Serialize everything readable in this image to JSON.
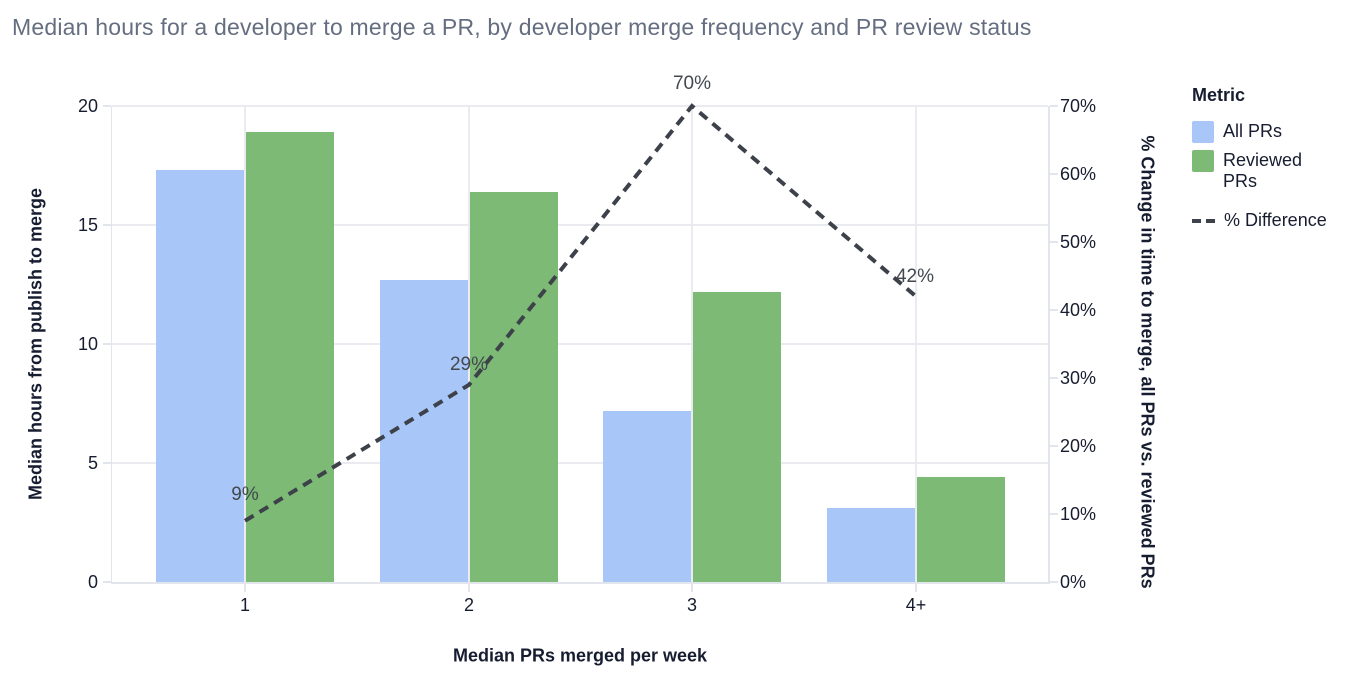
{
  "title": "Median hours for a developer to merge a PR, by developer merge frequency and PR review status",
  "colors": {
    "all_prs": "#a8c6f7",
    "reviewed_prs": "#7cba76",
    "difference_line": "#3d4149",
    "title_text": "#656e80",
    "axis_text": "#171d30",
    "line_label_text": "#43484f",
    "gridline": "#eaebf1",
    "axis_line": "#e3e5ec",
    "background": "#ffffff"
  },
  "chart_data": {
    "type": "bar+line combo",
    "categories": [
      "1",
      "2",
      "3",
      "4+"
    ],
    "series": [
      {
        "name": "All PRs",
        "type": "bar",
        "axis": "left",
        "values": [
          17.3,
          12.7,
          7.2,
          3.1
        ]
      },
      {
        "name": "Reviewed PRs",
        "type": "bar",
        "axis": "left",
        "values": [
          18.9,
          16.4,
          12.2,
          4.4
        ]
      },
      {
        "name": "% Difference",
        "type": "dashed-line",
        "axis": "right",
        "values": [
          9,
          29,
          70,
          42
        ],
        "point_labels": [
          "9%",
          "29%",
          "70%",
          "42%"
        ]
      }
    ],
    "xlabel": "Median PRs merged per week",
    "ylabel_left": "Median hours from publish to merge",
    "ylabel_right": "% Change in time to merge, all PRs vs. reviewed PRs",
    "y_left": {
      "min": 0,
      "max": 20,
      "tick_values": [
        0,
        5,
        10,
        15,
        20
      ],
      "tick_labels": [
        "0",
        "5",
        "10",
        "15",
        "20"
      ]
    },
    "y_right": {
      "min": 0,
      "max": 70,
      "tick_values": [
        0,
        10,
        20,
        30,
        40,
        50,
        60,
        70
      ],
      "tick_labels": [
        "0%",
        "10%",
        "20%",
        "30%",
        "40%",
        "50%",
        "60%",
        "70%"
      ]
    },
    "grid": true,
    "legend_position": "top-right"
  },
  "legend": {
    "title": "Metric",
    "items": [
      {
        "label": "All PRs",
        "swatch": "all_prs",
        "symbol": "square"
      },
      {
        "label": "Reviewed PRs",
        "swatch": "reviewed_prs",
        "symbol": "square"
      },
      {
        "label": "% Difference",
        "swatch": "difference_line",
        "symbol": "dashed-line"
      }
    ]
  }
}
